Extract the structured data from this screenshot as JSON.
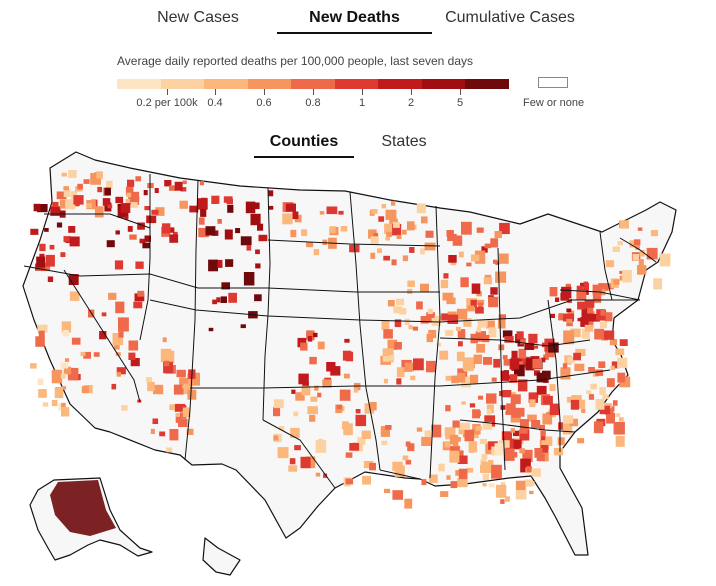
{
  "tabs": {
    "main": [
      {
        "label": "New Cases",
        "active": false
      },
      {
        "label": "New Deaths",
        "active": true
      },
      {
        "label": "Cumulative Cases",
        "active": false
      }
    ],
    "geo": [
      {
        "label": "Counties",
        "active": true
      },
      {
        "label": "States",
        "active": false
      }
    ]
  },
  "legend": {
    "title": "Average daily reported deaths per 100,000 people, last seven days",
    "colors": [
      "#fde4c3",
      "#fcd2a2",
      "#fbb77c",
      "#f7955f",
      "#ef6a4a",
      "#de3a32",
      "#c11a1c",
      "#a10e12",
      "#6e0a0c"
    ],
    "tick_labels": [
      "0.2 per 100k",
      "0.4",
      "0.6",
      "0.8",
      "1",
      "2",
      "5"
    ],
    "few_label": "Few or none"
  },
  "map": {
    "land_color": "#f7f7f7",
    "border_color": "#111111"
  }
}
